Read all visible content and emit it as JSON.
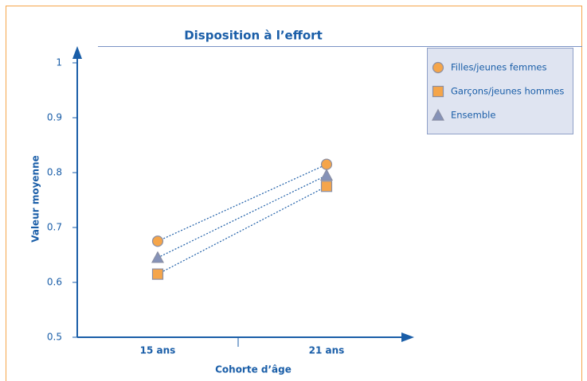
{
  "chart_data": {
    "type": "line",
    "title": "Disposition à l’effort",
    "xlabel": "Cohorte d’âge",
    "ylabel": "Valeur moyenne",
    "categories": [
      "15 ans",
      "21 ans"
    ],
    "series": [
      {
        "name": "Filles/jeunes femmes",
        "color": "#f5a54a",
        "marker": "circle",
        "values": [
          0.675,
          0.815
        ]
      },
      {
        "name": "Garçons/jeunes hommes",
        "color": "#f5a54a",
        "marker": "square",
        "values": [
          0.615,
          0.775
        ]
      },
      {
        "name": "Ensemble",
        "color": "#8592b8",
        "marker": "triangle",
        "values": [
          0.645,
          0.795
        ]
      }
    ],
    "ylim": [
      0.5,
      1
    ],
    "yticks": [
      0.5,
      0.6,
      0.7,
      0.8,
      0.9,
      1
    ],
    "line_color": "#1f5fa8",
    "line_style": "dotted",
    "legend": "upper right"
  }
}
